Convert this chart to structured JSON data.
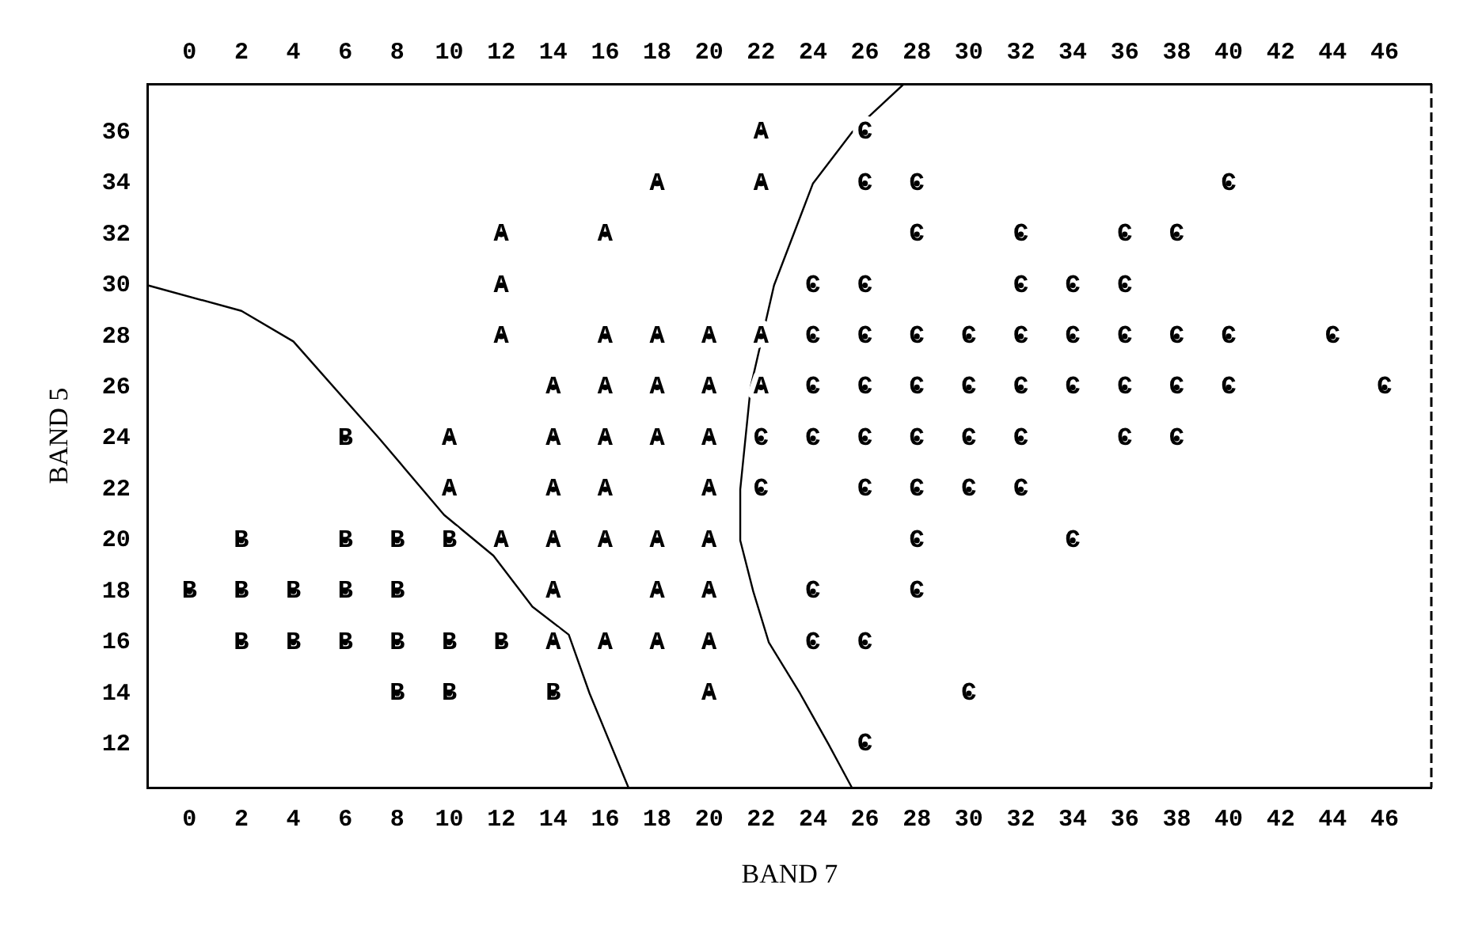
{
  "chart_data": {
    "type": "scatter",
    "xlabel": "BAND 7",
    "ylabel": "BAND 5",
    "xlim": [
      -1.6,
      47.8
    ],
    "ylim": [
      10.3,
      37.9
    ],
    "xticks": [
      0,
      2,
      4,
      6,
      8,
      10,
      12,
      14,
      16,
      18,
      20,
      22,
      24,
      26,
      28,
      30,
      32,
      34,
      36,
      38,
      40,
      42,
      44,
      46
    ],
    "x2lim": [
      -1.6,
      47.8
    ],
    "x2ticks": [
      0,
      2,
      4,
      6,
      8,
      10,
      12,
      14,
      16,
      18,
      20,
      22,
      24,
      26,
      28,
      30,
      32,
      34,
      36,
      38,
      40,
      42,
      44,
      46
    ],
    "yticks": [
      12,
      14,
      16,
      18,
      20,
      22,
      24,
      26,
      28,
      30,
      32,
      34,
      36
    ],
    "grid": false,
    "legend": false,
    "marker": "circle",
    "series": [
      {
        "name": "A",
        "color": "#000000",
        "x": [
          22,
          18,
          22,
          12,
          16,
          12,
          12,
          16,
          18,
          20,
          22,
          14,
          16,
          18,
          20,
          22,
          10,
          14,
          16,
          18,
          20,
          10,
          14,
          16,
          20,
          12,
          14,
          16,
          18,
          20,
          14,
          18,
          20,
          14,
          16,
          18,
          20,
          20
        ],
        "values": [
          36,
          34,
          34,
          32,
          32,
          30,
          28,
          28,
          28,
          28,
          28,
          26,
          26,
          26,
          26,
          26,
          24,
          24,
          24,
          24,
          24,
          22,
          22,
          22,
          22,
          20,
          20,
          20,
          20,
          20,
          18,
          18,
          18,
          16,
          16,
          16,
          16,
          14
        ]
      },
      {
        "name": "B",
        "color": "#000000",
        "x": [
          6,
          2,
          6,
          8,
          10,
          0,
          2,
          4,
          6,
          8,
          2,
          4,
          6,
          8,
          10,
          12,
          8,
          10,
          14
        ],
        "values": [
          24,
          20,
          20,
          20,
          20,
          18,
          18,
          18,
          18,
          18,
          16,
          16,
          16,
          16,
          16,
          16,
          14,
          14,
          14
        ]
      },
      {
        "name": "C",
        "color": "#000000",
        "x": [
          26,
          26,
          28,
          40,
          28,
          32,
          36,
          38,
          24,
          26,
          32,
          34,
          36,
          24,
          26,
          28,
          30,
          32,
          34,
          36,
          38,
          40,
          44,
          24,
          26,
          28,
          30,
          32,
          34,
          36,
          38,
          40,
          46,
          22,
          24,
          26,
          28,
          30,
          32,
          36,
          38,
          22,
          26,
          28,
          30,
          32,
          28,
          34,
          24,
          28,
          24,
          26,
          30,
          26
        ],
        "values": [
          36,
          34,
          34,
          34,
          32,
          32,
          32,
          32,
          30,
          30,
          30,
          30,
          30,
          28,
          28,
          28,
          28,
          28,
          28,
          28,
          28,
          28,
          28,
          26,
          26,
          26,
          26,
          26,
          26,
          26,
          26,
          26,
          26,
          24,
          24,
          24,
          24,
          24,
          24,
          24,
          24,
          22,
          22,
          22,
          22,
          22,
          20,
          20,
          18,
          18,
          16,
          16,
          14,
          12
        ]
      },
      {
        "type": "line",
        "marker": "none",
        "color": "#000000",
        "x": [
          -1.6,
          2,
          4,
          7.3,
          9.8,
          11.7,
          13.2,
          14.6,
          15.4,
          16.9
        ],
        "values": [
          30,
          29,
          27.8,
          24,
          21,
          19.4,
          17.4,
          16.3,
          14,
          10.3
        ]
      },
      {
        "type": "line",
        "marker": "none",
        "color": "#000000",
        "x": [
          27.5,
          25.5,
          24,
          22.5,
          21.6,
          21.2,
          21.2,
          21.7,
          22.3,
          23.5,
          24.6,
          25.5
        ],
        "values": [
          37.9,
          36,
          34,
          30,
          26,
          22,
          20,
          18,
          16,
          14,
          12,
          10.3
        ]
      }
    ]
  }
}
